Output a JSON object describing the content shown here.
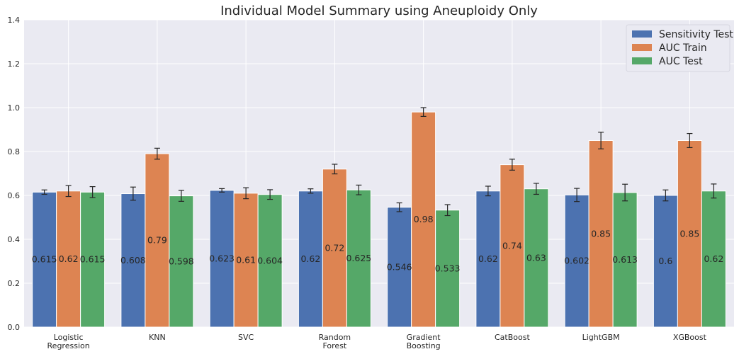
{
  "chart_data": {
    "type": "bar",
    "title": "Individual Model Summary using Aneuploidy Only",
    "xlabel": "",
    "ylabel": "",
    "ylim": [
      0,
      1.4
    ],
    "yticks": [
      "0.0",
      "0.2",
      "0.4",
      "0.6",
      "0.8",
      "1.0",
      "1.2",
      "1.4"
    ],
    "grid": true,
    "legend_position": "top-right",
    "categories": [
      [
        "Logistic",
        "Regression"
      ],
      [
        "KNN"
      ],
      [
        "SVC"
      ],
      [
        "Random",
        "Forest"
      ],
      [
        "Gradient",
        "Boosting"
      ],
      [
        "CatBoost"
      ],
      [
        "LightGBM"
      ],
      [
        "XGBoost"
      ]
    ],
    "series": [
      {
        "name": "Sensitivity Test",
        "color": "#4c72b0",
        "values": [
          0.615,
          0.608,
          0.623,
          0.62,
          0.546,
          0.62,
          0.602,
          0.6
        ],
        "labels": [
          "0.615",
          "0.608",
          "0.623",
          "0.62",
          "0.546",
          "0.62",
          "0.602",
          "0.6"
        ],
        "errors": [
          0.01,
          0.03,
          0.008,
          0.01,
          0.02,
          0.022,
          0.03,
          0.025
        ]
      },
      {
        "name": "AUC Train",
        "color": "#dd8452",
        "values": [
          0.62,
          0.79,
          0.61,
          0.72,
          0.98,
          0.74,
          0.85,
          0.85
        ],
        "labels": [
          "0.62",
          "0.79",
          "0.61",
          "0.72",
          "0.98",
          "0.74",
          "0.85",
          "0.85"
        ],
        "errors": [
          0.025,
          0.025,
          0.025,
          0.022,
          0.02,
          0.025,
          0.038,
          0.032
        ]
      },
      {
        "name": "AUC Test",
        "color": "#55a868",
        "values": [
          0.615,
          0.598,
          0.604,
          0.625,
          0.533,
          0.63,
          0.613,
          0.62
        ],
        "labels": [
          "0.615",
          "0.598",
          "0.604",
          "0.625",
          "0.533",
          "0.63",
          "0.613",
          "0.62"
        ],
        "errors": [
          0.025,
          0.025,
          0.022,
          0.022,
          0.025,
          0.025,
          0.038,
          0.032
        ]
      }
    ]
  }
}
